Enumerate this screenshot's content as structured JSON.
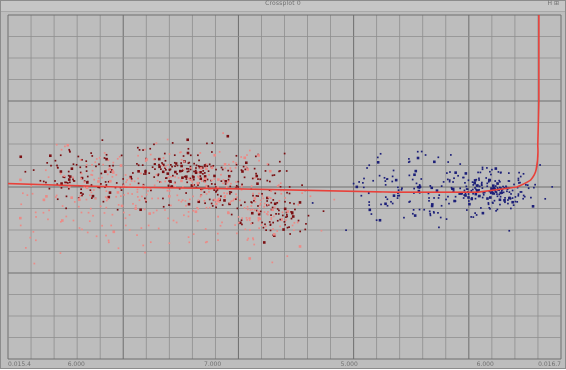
{
  "window": {
    "title": "Crossplot 0",
    "controls": "H ⊞"
  },
  "chart_data": {
    "type": "scatter",
    "title": "",
    "xlabel": "",
    "ylabel": "",
    "grid": true,
    "legend": "none",
    "x_ticks": [
      "0.015.4",
      "6.000",
      "7.000",
      "5.000",
      "6.000",
      "0.016.7"
    ],
    "colors": {
      "background": "#bdbdbd",
      "grid_major": "#6e6e6e",
      "grid_minor": "#8e8e8e",
      "trend_line": "#e8413a",
      "cluster_dark_red": "#7a0f12",
      "cluster_light_red": "#ec8a86",
      "cluster_blue": "#1c1f78"
    },
    "series": [
      {
        "color": "dark_red",
        "clusters": [
          {
            "cx": 0.14,
            "cy": 0.47,
            "sx": 0.05,
            "sy": 0.045,
            "n": 110
          },
          {
            "cx": 0.3,
            "cy": 0.45,
            "sx": 0.04,
            "sy": 0.03,
            "n": 120
          },
          {
            "cx": 0.41,
            "cy": 0.5,
            "sx": 0.05,
            "sy": 0.06,
            "n": 120
          },
          {
            "cx": 0.48,
            "cy": 0.58,
            "sx": 0.03,
            "sy": 0.03,
            "n": 60
          }
        ]
      },
      {
        "color": "light_red",
        "clusters": [
          {
            "cx": 0.15,
            "cy": 0.52,
            "sx": 0.07,
            "sy": 0.07,
            "n": 150
          },
          {
            "cx": 0.34,
            "cy": 0.5,
            "sx": 0.07,
            "sy": 0.06,
            "n": 170
          },
          {
            "cx": 0.46,
            "cy": 0.58,
            "sx": 0.05,
            "sy": 0.05,
            "n": 100
          }
        ]
      },
      {
        "color": "blue",
        "clusters": [
          {
            "cx": 0.73,
            "cy": 0.5,
            "sx": 0.06,
            "sy": 0.05,
            "n": 120
          },
          {
            "cx": 0.87,
            "cy": 0.51,
            "sx": 0.04,
            "sy": 0.03,
            "n": 200
          }
        ]
      }
    ],
    "trend_line": [
      [
        0.0,
        0.49
      ],
      [
        0.2,
        0.5
      ],
      [
        0.4,
        0.505
      ],
      [
        0.55,
        0.51
      ],
      [
        0.7,
        0.515
      ],
      [
        0.85,
        0.515
      ],
      [
        0.92,
        0.5
      ],
      [
        0.945,
        0.48
      ],
      [
        0.955,
        0.45
      ],
      [
        0.958,
        0.38
      ],
      [
        0.96,
        0.25
      ],
      [
        0.96,
        0.0
      ]
    ]
  }
}
